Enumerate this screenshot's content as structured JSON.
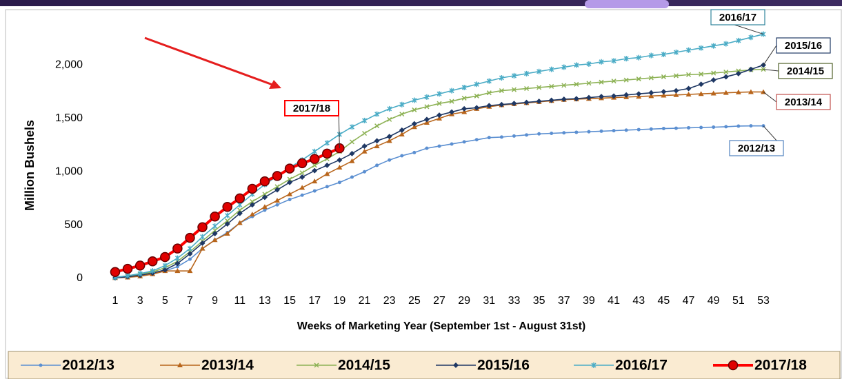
{
  "chart_data": {
    "type": "line",
    "ylabel": "Million Bushels",
    "xlabel": "Weeks of Marketing Year (September 1st - August 31st)",
    "x": [
      1,
      2,
      3,
      4,
      5,
      6,
      7,
      8,
      9,
      10,
      11,
      12,
      13,
      14,
      15,
      16,
      17,
      18,
      19,
      20,
      21,
      22,
      23,
      24,
      25,
      26,
      27,
      28,
      29,
      30,
      31,
      32,
      33,
      34,
      35,
      36,
      37,
      38,
      39,
      40,
      41,
      42,
      43,
      44,
      45,
      46,
      47,
      48,
      49,
      50,
      51,
      52,
      53
    ],
    "xlim": [
      1,
      53
    ],
    "xticks": [
      1,
      3,
      5,
      7,
      9,
      11,
      13,
      15,
      17,
      19,
      21,
      23,
      25,
      27,
      29,
      31,
      33,
      35,
      37,
      39,
      41,
      43,
      45,
      47,
      49,
      51,
      53
    ],
    "ylim": [
      0,
      2300
    ],
    "yticks": [
      0,
      500,
      {
        "value": 1000,
        "label": "1,000"
      },
      {
        "value": 1500,
        "label": "1,500"
      },
      {
        "value": 2000,
        "label": "2,000"
      }
    ],
    "grid": false,
    "series": [
      {
        "name": "2012/13",
        "color": "#5b8fd1",
        "label_color": "#4f81bd",
        "marker": "circle",
        "values": [
          5,
          15,
          25,
          40,
          70,
          110,
          180,
          280,
          360,
          430,
          520,
          580,
          640,
          690,
          740,
          780,
          820,
          860,
          900,
          950,
          1000,
          1060,
          1110,
          1150,
          1180,
          1220,
          1240,
          1260,
          1280,
          1300,
          1320,
          1325,
          1335,
          1345,
          1355,
          1360,
          1365,
          1370,
          1375,
          1380,
          1385,
          1390,
          1395,
          1400,
          1405,
          1408,
          1412,
          1415,
          1418,
          1422,
          1428,
          1430,
          1430
        ]
      },
      {
        "name": "2013/14",
        "color": "#b8651b",
        "label_color": "#c0504d",
        "marker": "triangle",
        "values": [
          5,
          10,
          20,
          40,
          70,
          70,
          70,
          280,
          360,
          420,
          520,
          600,
          670,
          730,
          790,
          850,
          910,
          980,
          1040,
          1100,
          1190,
          1240,
          1290,
          1350,
          1420,
          1460,
          1500,
          1540,
          1560,
          1590,
          1610,
          1625,
          1635,
          1645,
          1655,
          1665,
          1675,
          1680,
          1685,
          1690,
          1695,
          1700,
          1705,
          1710,
          1715,
          1720,
          1725,
          1730,
          1735,
          1740,
          1745,
          1748,
          1748
        ]
      },
      {
        "name": "2014/15",
        "color": "#8db255",
        "label_color": "#4f6228",
        "marker": "x",
        "values": [
          10,
          20,
          40,
          60,
          100,
          160,
          250,
          350,
          450,
          540,
          640,
          720,
          790,
          860,
          930,
          990,
          1060,
          1120,
          1190,
          1280,
          1360,
          1430,
          1490,
          1540,
          1580,
          1610,
          1640,
          1660,
          1690,
          1710,
          1740,
          1760,
          1770,
          1780,
          1790,
          1800,
          1810,
          1820,
          1830,
          1840,
          1850,
          1860,
          1870,
          1880,
          1890,
          1900,
          1910,
          1915,
          1925,
          1935,
          1945,
          1955,
          1960
        ]
      },
      {
        "name": "2015/16",
        "color": "#1f3864",
        "label_color": "#1f3864",
        "marker": "diamond",
        "values": [
          5,
          15,
          30,
          50,
          80,
          140,
          230,
          330,
          420,
          510,
          610,
          690,
          760,
          830,
          900,
          950,
          1010,
          1060,
          1110,
          1170,
          1240,
          1290,
          1330,
          1390,
          1450,
          1490,
          1530,
          1560,
          1590,
          1600,
          1620,
          1630,
          1640,
          1650,
          1660,
          1670,
          1680,
          1685,
          1695,
          1705,
          1710,
          1720,
          1730,
          1740,
          1750,
          1760,
          1780,
          1820,
          1860,
          1890,
          1920,
          1960,
          2000
        ]
      },
      {
        "name": "2016/17",
        "color": "#4bacc6",
        "label_color": "#31859c",
        "marker": "asterisk",
        "values": [
          10,
          25,
          45,
          70,
          120,
          190,
          280,
          390,
          490,
          590,
          690,
          790,
          880,
          960,
          1040,
          1110,
          1190,
          1270,
          1350,
          1420,
          1480,
          1540,
          1590,
          1630,
          1670,
          1700,
          1730,
          1760,
          1790,
          1820,
          1850,
          1880,
          1900,
          1920,
          1940,
          1960,
          1980,
          2000,
          2010,
          2030,
          2040,
          2060,
          2070,
          2090,
          2100,
          2120,
          2140,
          2160,
          2180,
          2200,
          2230,
          2260,
          2290
        ]
      },
      {
        "name": "2017/18",
        "color": "#ff0000",
        "label_color": "#ff0000",
        "marker": "bigcircle",
        "values": [
          60,
          90,
          120,
          160,
          200,
          280,
          380,
          480,
          580,
          670,
          750,
          840,
          910,
          960,
          1030,
          1080,
          1120,
          1170,
          1220,
          null,
          null,
          null,
          null,
          null,
          null,
          null,
          null,
          null,
          null,
          null,
          null,
          null,
          null,
          null,
          null,
          null,
          null,
          null,
          null,
          null,
          null,
          null,
          null,
          null,
          null,
          null,
          null,
          null,
          null,
          null,
          null,
          null,
          null
        ]
      }
    ]
  }
}
